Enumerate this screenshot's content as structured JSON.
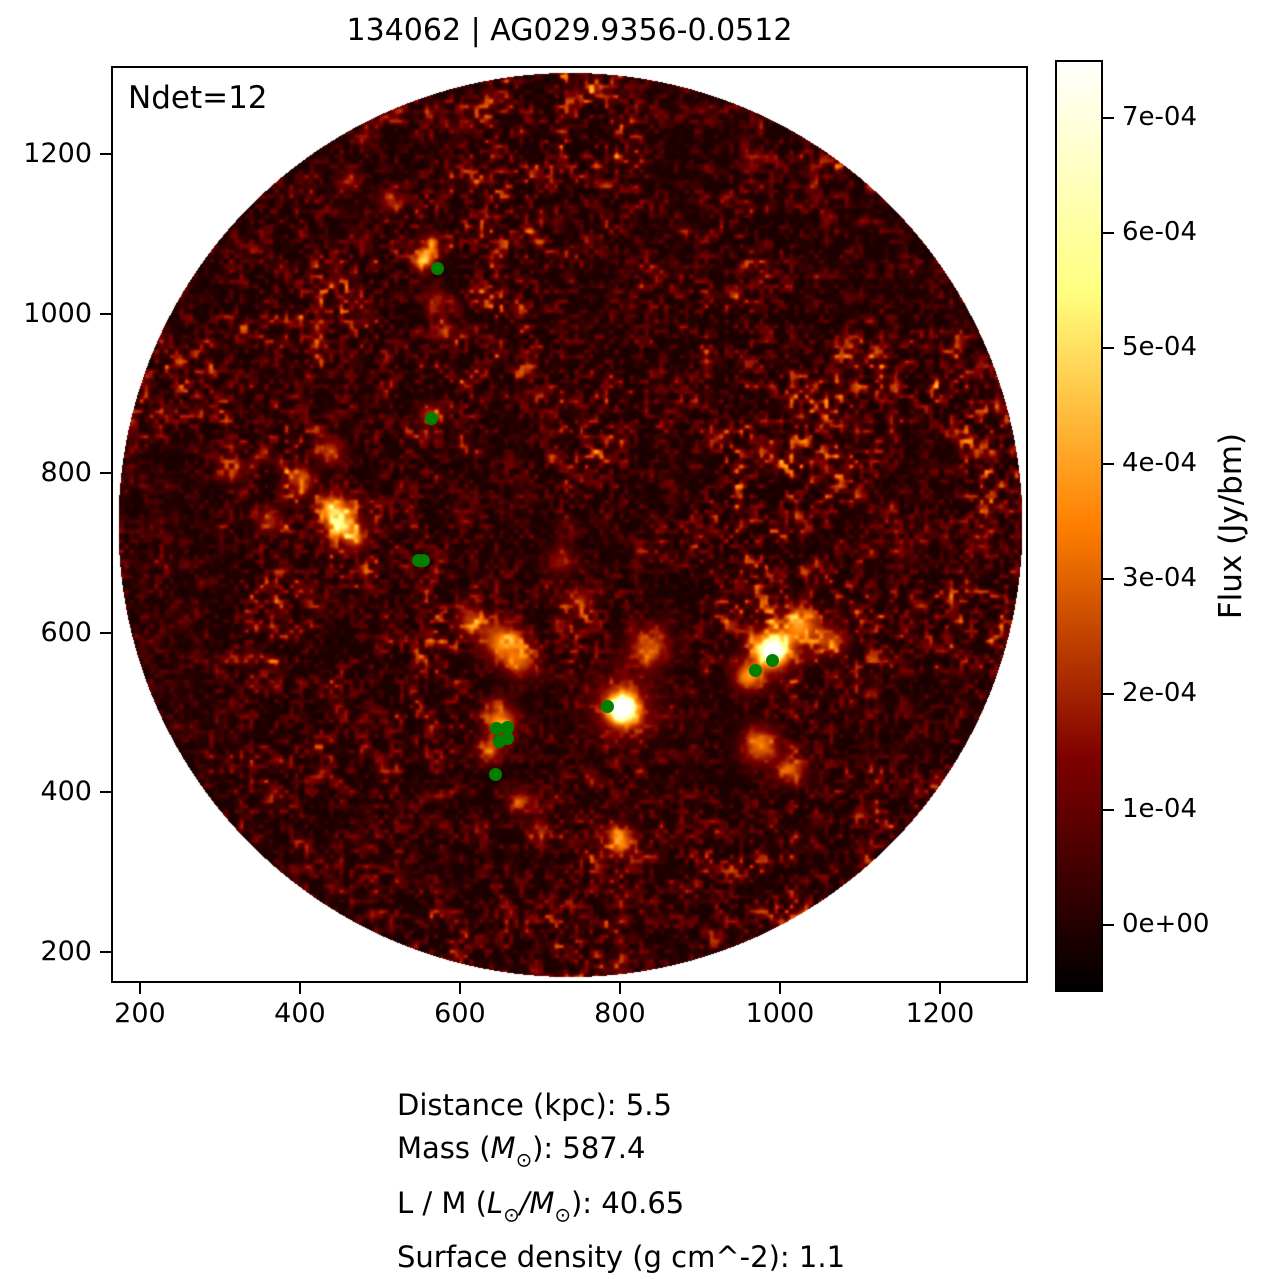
{
  "title": "134062 | AG029.9356-0.0512",
  "annotation": "Ndet=12",
  "axes": {
    "x_range": [
      163.8,
      1310.1
    ],
    "y_range": [
      161.0,
      1310.3
    ],
    "x_ticks": [
      "200",
      "400",
      "600",
      "800",
      "1000",
      "1200"
    ],
    "y_ticks": [
      "200",
      "400",
      "600",
      "800",
      "1000",
      "1200"
    ]
  },
  "colorbar": {
    "label": "Flux (Jy/bm)",
    "range": [
      -5.8e-05,
      0.00075
    ],
    "ticks": [
      "0e+00",
      "1e-04",
      "2e-04",
      "3e-04",
      "4e-04",
      "5e-04",
      "6e-04",
      "7e-04"
    ]
  },
  "detections": {
    "color": "#008000",
    "points": [
      [
        572,
        1057
      ],
      [
        565,
        869
      ],
      [
        548,
        690
      ],
      [
        555,
        690
      ],
      [
        646,
        480
      ],
      [
        659,
        481
      ],
      [
        649,
        464
      ],
      [
        659,
        467
      ],
      [
        644,
        422
      ],
      [
        785,
        507
      ],
      [
        969,
        553
      ],
      [
        991,
        565
      ]
    ]
  },
  "stats": {
    "lines": [
      {
        "parts": [
          {
            "t": "Distance (kpc): 5.5"
          }
        ]
      },
      {
        "parts": [
          {
            "t": "Mass ("
          },
          {
            "t": "M",
            "s": "it"
          },
          {
            "t": "⊙",
            "s": "sub"
          },
          {
            "t": "): 587.4"
          }
        ]
      },
      {
        "parts": [
          {
            "t": "L / M ("
          },
          {
            "t": "L",
            "s": "it"
          },
          {
            "t": "⊙",
            "s": "sub"
          },
          {
            "t": "/",
            "s": "it"
          },
          {
            "t": "M",
            "s": "it"
          },
          {
            "t": "⊙",
            "s": "sub"
          },
          {
            "t": "): 40.65"
          }
        ]
      },
      {
        "parts": [
          {
            "t": "Surface density (g cm^-2): 1.1"
          }
        ]
      }
    ]
  },
  "chart_data": {
    "type": "heatmap",
    "title": "134062 | AG029.9356-0.0512",
    "xlabel": "",
    "ylabel": "",
    "xlim": [
      163.8,
      1310.1
    ],
    "ylim": [
      161.0,
      1310.3
    ],
    "x_ticks": [
      200,
      400,
      600,
      800,
      1000,
      1200
    ],
    "y_ticks": [
      200,
      400,
      600,
      800,
      1000,
      1200
    ],
    "grid": false,
    "image": {
      "description": "Circular radio-continuum flux map rendered with an afmhot-style colormap: mottled dark-red/black noise background with bright orange-yellow filaments and compact white sources; white outside the circular field of view",
      "shape": "circle",
      "center": [
        737,
        736
      ],
      "radius": 566,
      "colormap": "afmhot",
      "value_range": [
        -5.8e-05,
        0.00075
      ],
      "bright_sources": [
        [
          802,
          506
        ],
        [
          990,
          579
        ],
        [
          650,
          591
        ],
        [
          450,
          741
        ],
        [
          800,
          340
        ],
        [
          556,
          1070
        ]
      ]
    },
    "colorbar": {
      "label": "Flux (Jy/bm)",
      "tick_values": [
        0.0,
        0.0001,
        0.0002,
        0.0003,
        0.0004,
        0.0005,
        0.0006,
        0.0007
      ],
      "tick_labels": [
        "0e+00",
        "1e-04",
        "2e-04",
        "3e-04",
        "4e-04",
        "5e-04",
        "6e-04",
        "7e-04"
      ],
      "position": "right"
    },
    "series": [
      {
        "name": "detections",
        "type": "scatter",
        "color": "#008000",
        "x": [
          572,
          565,
          548,
          555,
          646,
          659,
          649,
          659,
          644,
          785,
          969,
          991
        ],
        "y": [
          1057,
          869,
          690,
          690,
          480,
          481,
          464,
          467,
          422,
          507,
          553,
          565
        ]
      }
    ],
    "annotations": [
      {
        "text": "Ndet=12",
        "position": "top-left"
      }
    ],
    "caption_lines": [
      "Distance (kpc): 5.5",
      "Mass (M⊙): 587.4",
      "L / M (L⊙/M⊙): 40.65",
      "Surface density (g cm^-2): 1.1"
    ]
  }
}
